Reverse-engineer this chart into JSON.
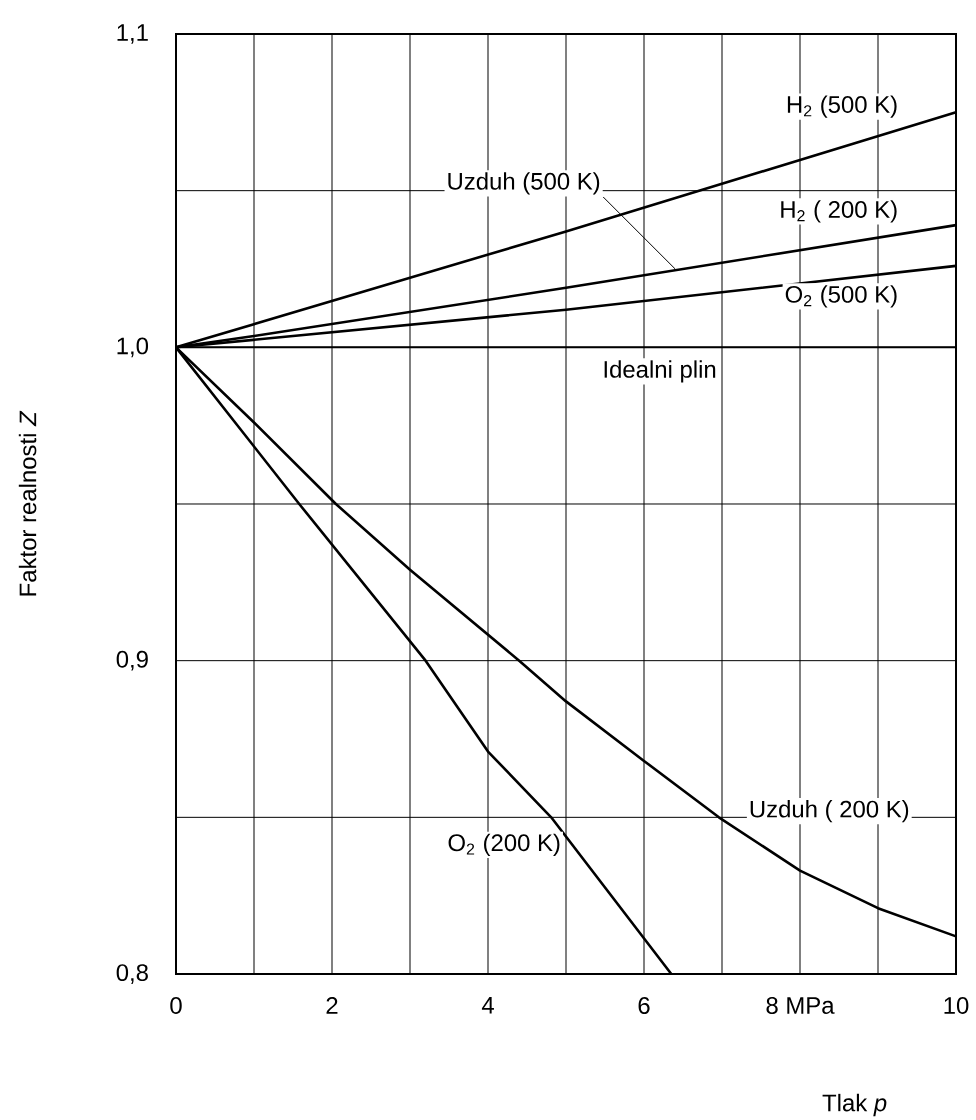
{
  "chart_data": {
    "type": "line",
    "xlabel": "Tlak *p*",
    "ylabel": "Faktor realnosti *Z*",
    "xlim": [
      0,
      10
    ],
    "ylim": [
      0.8,
      1.1
    ],
    "xticks": [
      0,
      {
        "value": 1,
        "label": null
      },
      2,
      {
        "value": 3,
        "label": null
      },
      4,
      {
        "value": 5,
        "label": null
      },
      6,
      {
        "value": 7,
        "label": null
      },
      {
        "value": 8,
        "label": "8 MPa"
      },
      {
        "value": 9,
        "label": null
      },
      10
    ],
    "yticks": [
      {
        "value": 0.8,
        "label": "0,8"
      },
      {
        "value": 0.85,
        "label": null
      },
      {
        "value": 0.9,
        "label": "0,9"
      },
      {
        "value": 0.95,
        "label": null
      },
      {
        "value": 1.0,
        "label": "1,0"
      },
      {
        "value": 1.05,
        "label": null
      },
      {
        "value": 1.1,
        "label": "1,1"
      }
    ],
    "grid": true,
    "marker": "none",
    "line_style": "solid",
    "series": [
      {
        "name": "H$_{2}$ (500 K)",
        "color": "#000000",
        "x": [
          0,
          5,
          10
        ],
        "values": [
          1.0,
          1.037,
          1.075
        ]
      },
      {
        "name": "H$_{2}$ ( 200 K)",
        "color": "#000000",
        "x": [
          0,
          1,
          5,
          10
        ],
        "values": [
          1.0,
          1.0036,
          1.019,
          1.039
        ]
      },
      {
        "name": "O$_{2}$ (500 K)",
        "color": "#000000",
        "x": [
          0,
          5,
          10
        ],
        "values": [
          1.0,
          1.012,
          1.026
        ]
      },
      {
        "name": "Uzduh ( 200 K)",
        "color": "#000000",
        "x": [
          0,
          1,
          2.05,
          3,
          4.4,
          5,
          6,
          6.96,
          8,
          9,
          10
        ],
        "values": [
          1.0,
          0.976,
          0.95,
          0.929,
          0.9,
          0.887,
          0.868,
          0.85,
          0.833,
          0.821,
          0.812
        ]
      },
      {
        "name": "O$_{2}$ (200 K)",
        "color": "#000000",
        "x": [
          0,
          1.58,
          3.2,
          4,
          4.81,
          6.35
        ],
        "values": [
          1.0,
          0.95,
          0.9,
          0.871,
          0.85,
          0.8
        ]
      }
    ],
    "ref_lines": [
      {
        "axis": "y",
        "value": 1.0,
        "label": "Idealni plin",
        "color": "#000000"
      }
    ],
    "annotations": [
      {
        "text": "Uzduh (500 K)",
        "x": 6.4,
        "y": 1.025
      }
    ]
  }
}
